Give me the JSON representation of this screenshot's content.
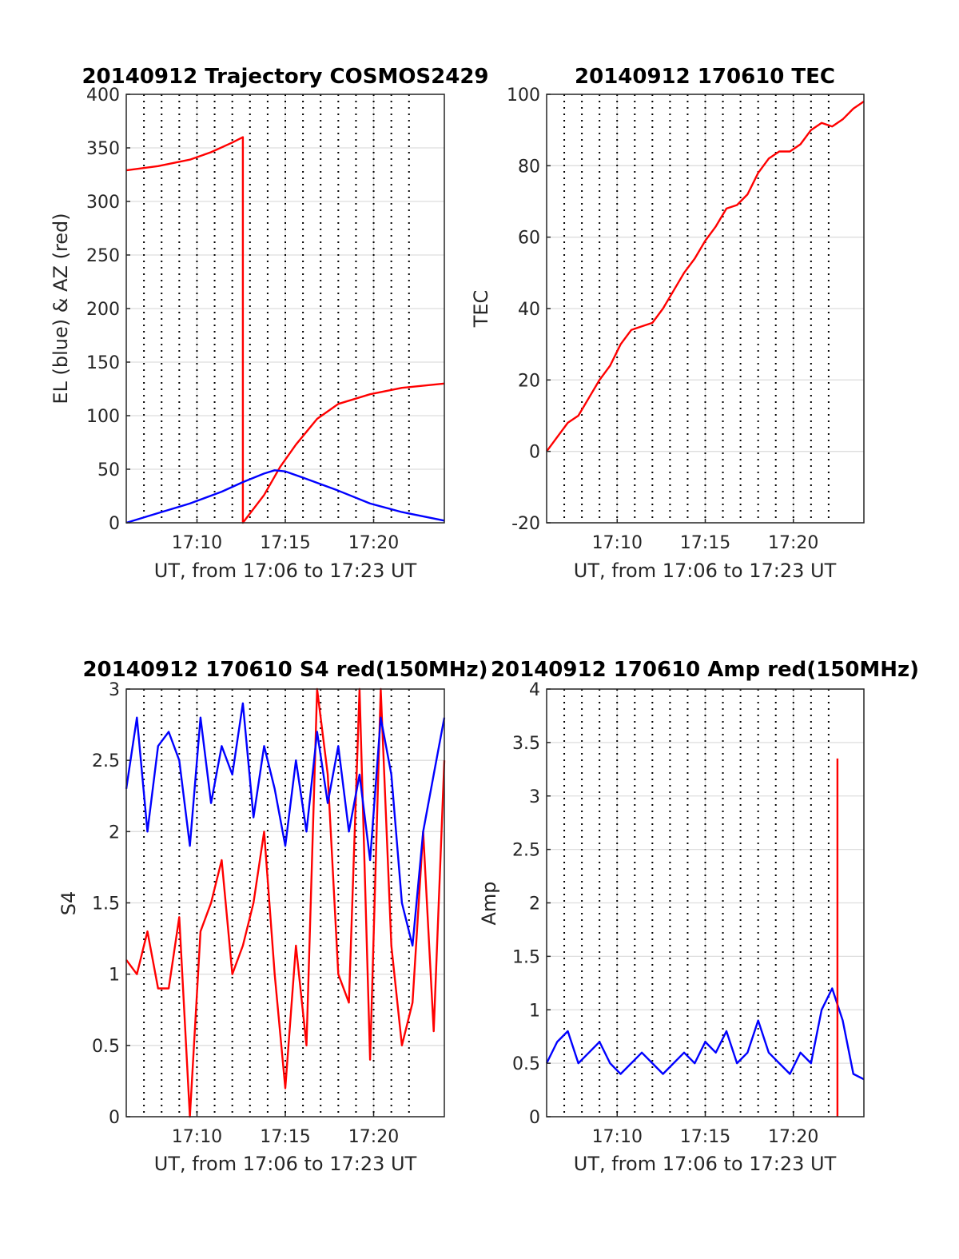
{
  "colors": {
    "red": "#ff0000",
    "blue": "#0000ff",
    "grid": "#dedede",
    "axis": "#262626"
  },
  "chart_data": [
    {
      "type": "line",
      "title": "20140912 Trajectory COSMOS2429",
      "xlabel": "UT, from 17:06 to 17:23 UT",
      "ylabel": "EL (blue) & AZ (red)",
      "xlim": [
        17.1,
        17.4
      ],
      "ylim": [
        0,
        400
      ],
      "yticks": [
        0,
        50,
        100,
        150,
        200,
        250,
        300,
        350,
        400
      ],
      "ytick_labels": [
        "0",
        "50",
        "100",
        "150",
        "200",
        "250",
        "300",
        "350",
        "400"
      ],
      "xticks": [
        17.1667,
        17.25,
        17.3333
      ],
      "xtick_labels": [
        "17:10",
        "17:15",
        "17:20"
      ],
      "grid": true,
      "series": [
        {
          "color": "red",
          "x": [
            17.1,
            17.13,
            17.16,
            17.18,
            17.2,
            17.21,
            17.21,
            17.23,
            17.245,
            17.26,
            17.28,
            17.3,
            17.33,
            17.36,
            17.4
          ],
          "y": [
            329,
            333,
            339,
            346,
            355,
            360,
            0,
            26,
            52,
            73,
            97,
            111,
            120,
            126,
            130
          ]
        },
        {
          "color": "blue",
          "x": [
            17.1,
            17.13,
            17.16,
            17.19,
            17.21,
            17.23,
            17.24,
            17.25,
            17.27,
            17.3,
            17.33,
            17.36,
            17.4
          ],
          "y": [
            0,
            9,
            18,
            29,
            38,
            46,
            49,
            48,
            41,
            30,
            18,
            10,
            2
          ]
        }
      ]
    },
    {
      "type": "line",
      "title": "20140912 170610 TEC",
      "xlabel": "UT, from 17:06 to 17:23 UT",
      "ylabel": "TEC",
      "xlim": [
        17.1,
        17.4
      ],
      "ylim": [
        -20,
        100
      ],
      "yticks": [
        -20,
        0,
        20,
        40,
        60,
        80,
        100
      ],
      "ytick_labels": [
        "-20",
        "0",
        "20",
        "40",
        "60",
        "80",
        "100"
      ],
      "xticks": [
        17.1667,
        17.25,
        17.3333
      ],
      "xtick_labels": [
        "17:10",
        "17:15",
        "17:20"
      ],
      "grid": true,
      "series": [
        {
          "color": "red",
          "x": [
            17.1,
            17.11,
            17.12,
            17.13,
            17.14,
            17.15,
            17.16,
            17.17,
            17.18,
            17.19,
            17.2,
            17.21,
            17.22,
            17.23,
            17.24,
            17.25,
            17.26,
            17.27,
            17.28,
            17.29,
            17.3,
            17.31,
            17.32,
            17.33,
            17.34,
            17.35,
            17.36,
            17.37,
            17.38,
            17.39,
            17.4
          ],
          "y": [
            0,
            4,
            8,
            10,
            15,
            20,
            24,
            30,
            34,
            35,
            36,
            40,
            45,
            50,
            54,
            59,
            63,
            68,
            69,
            72,
            78,
            82,
            84,
            84,
            86,
            90,
            92,
            91,
            93,
            96,
            98
          ]
        }
      ]
    },
    {
      "type": "line",
      "title": "20140912 170610 S4 red(150MHz)",
      "xlabel": "UT, from 17:06 to 17:23 UT",
      "ylabel": "S4",
      "xlim": [
        17.1,
        17.4
      ],
      "ylim": [
        0,
        3
      ],
      "yticks": [
        0,
        0.5,
        1,
        1.5,
        2,
        2.5,
        3
      ],
      "ytick_labels": [
        "0",
        "0.5",
        "1",
        "1.5",
        "2",
        "2.5",
        "3"
      ],
      "xticks": [
        17.1667,
        17.25,
        17.3333
      ],
      "xtick_labels": [
        "17:10",
        "17:15",
        "17:20"
      ],
      "grid": true,
      "series": [
        {
          "color": "red",
          "x": [
            17.1,
            17.11,
            17.12,
            17.13,
            17.14,
            17.15,
            17.16,
            17.17,
            17.18,
            17.19,
            17.2,
            17.21,
            17.22,
            17.23,
            17.24,
            17.25,
            17.26,
            17.27,
            17.28,
            17.29,
            17.3,
            17.31,
            17.32,
            17.33,
            17.34,
            17.35,
            17.36,
            17.37,
            17.38,
            17.39,
            17.4
          ],
          "y": [
            1.1,
            1.0,
            1.3,
            0.9,
            0.9,
            1.4,
            0,
            1.3,
            1.5,
            1.8,
            1.0,
            1.2,
            1.5,
            2.0,
            1.0,
            0.2,
            1.2,
            0.5,
            3.0,
            2.4,
            1.0,
            0.8,
            3.0,
            0.4,
            3.0,
            1.2,
            0.5,
            0.8,
            2.0,
            0.6,
            2.5
          ]
        },
        {
          "color": "blue",
          "x": [
            17.1,
            17.11,
            17.12,
            17.13,
            17.14,
            17.15,
            17.16,
            17.17,
            17.18,
            17.19,
            17.2,
            17.21,
            17.22,
            17.23,
            17.24,
            17.25,
            17.26,
            17.27,
            17.28,
            17.29,
            17.3,
            17.31,
            17.32,
            17.33,
            17.34,
            17.35,
            17.36,
            17.37,
            17.38,
            17.39,
            17.4
          ],
          "y": [
            2.3,
            2.8,
            2.0,
            2.6,
            2.7,
            2.5,
            1.9,
            2.8,
            2.2,
            2.6,
            2.4,
            2.9,
            2.1,
            2.6,
            2.3,
            1.9,
            2.5,
            2.0,
            2.7,
            2.2,
            2.6,
            2.0,
            2.4,
            1.8,
            2.8,
            2.4,
            1.5,
            1.2,
            2.0,
            2.4,
            2.8
          ]
        }
      ]
    },
    {
      "type": "line",
      "title": "20140912 170610 Amp red(150MHz)",
      "xlabel": "UT, from 17:06 to 17:23 UT",
      "ylabel": "Amp",
      "xlim": [
        17.1,
        17.4
      ],
      "ylim": [
        0,
        4
      ],
      "yticks": [
        0,
        0.5,
        1,
        1.5,
        2,
        2.5,
        3,
        3.5,
        4
      ],
      "ytick_labels": [
        "0",
        "0.5",
        "1",
        "1.5",
        "2",
        "2.5",
        "3",
        "3.5",
        "4"
      ],
      "xticks": [
        17.1667,
        17.25,
        17.3333
      ],
      "xtick_labels": [
        "17:10",
        "17:15",
        "17:20"
      ],
      "grid": true,
      "series": [
        {
          "color": "blue",
          "x": [
            17.1,
            17.11,
            17.12,
            17.13,
            17.14,
            17.15,
            17.16,
            17.17,
            17.18,
            17.19,
            17.2,
            17.21,
            17.22,
            17.23,
            17.24,
            17.25,
            17.26,
            17.27,
            17.28,
            17.29,
            17.3,
            17.31,
            17.32,
            17.33,
            17.34,
            17.35,
            17.36,
            17.37,
            17.38,
            17.39,
            17.4
          ],
          "y": [
            0.5,
            0.7,
            0.8,
            0.5,
            0.6,
            0.7,
            0.5,
            0.4,
            0.5,
            0.6,
            0.5,
            0.4,
            0.5,
            0.6,
            0.5,
            0.7,
            0.6,
            0.8,
            0.5,
            0.6,
            0.9,
            0.6,
            0.5,
            0.4,
            0.6,
            0.5,
            1.0,
            1.2,
            0.9,
            0.4,
            0.35
          ]
        },
        {
          "color": "red",
          "x": [
            17.375,
            17.375
          ],
          "y": [
            0,
            3.35
          ]
        }
      ]
    }
  ]
}
